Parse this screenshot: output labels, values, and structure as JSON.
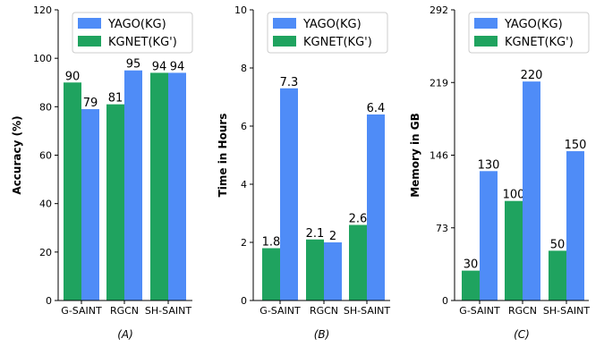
{
  "colors": {
    "kg": "#4f8cf7",
    "kgnet": "#1fa35f"
  },
  "legend": [
    "YAGO(KG)",
    "KGNET(KG')"
  ],
  "chart_data": [
    {
      "type": "bar",
      "caption": "(A)",
      "ylabel": "Accuracy (%)",
      "categories": [
        "G-SAINT",
        "RGCN",
        "SH-SAINT"
      ],
      "ylim": [
        0,
        120
      ],
      "yticks": [
        0,
        20,
        40,
        60,
        80,
        100,
        120
      ],
      "series": [
        {
          "name": "KGNET(KG')",
          "values": [
            90,
            81,
            94
          ],
          "labels": [
            "90",
            "81",
            "94"
          ]
        },
        {
          "name": "YAGO(KG)",
          "values": [
            79,
            95,
            94
          ],
          "labels": [
            "79",
            "95",
            "94"
          ]
        }
      ],
      "legend_position": "upper-center"
    },
    {
      "type": "bar",
      "caption": "(B)",
      "ylabel": "Time in Hours",
      "categories": [
        "G-SAINT",
        "RGCN",
        "SH-SAINT"
      ],
      "ylim": [
        0,
        10
      ],
      "yticks": [
        0,
        2,
        4,
        6,
        8,
        10
      ],
      "series": [
        {
          "name": "KGNET(KG')",
          "values": [
            1.8,
            2.1,
            2.6
          ],
          "labels": [
            "1.8",
            "2.1",
            "2.6"
          ]
        },
        {
          "name": "YAGO(KG)",
          "values": [
            7.3,
            2.0,
            6.4
          ],
          "labels": [
            "7.3",
            "2",
            "6.4"
          ]
        }
      ],
      "legend_position": "upper-center"
    },
    {
      "type": "bar",
      "caption": "(C)",
      "ylabel": "Memory in GB",
      "categories": [
        "G-SAINT",
        "RGCN",
        "SH-SAINT"
      ],
      "ylim": [
        0,
        292
      ],
      "yticks": [
        0,
        73,
        146,
        219,
        292
      ],
      "series": [
        {
          "name": "KGNET(KG')",
          "values": [
            30,
            100,
            50
          ],
          "labels": [
            "30",
            "100",
            "50"
          ]
        },
        {
          "name": "YAGO(KG)",
          "values": [
            130,
            220,
            150
          ],
          "labels": [
            "130",
            "220",
            "150"
          ]
        }
      ],
      "legend_position": "upper-center"
    }
  ]
}
